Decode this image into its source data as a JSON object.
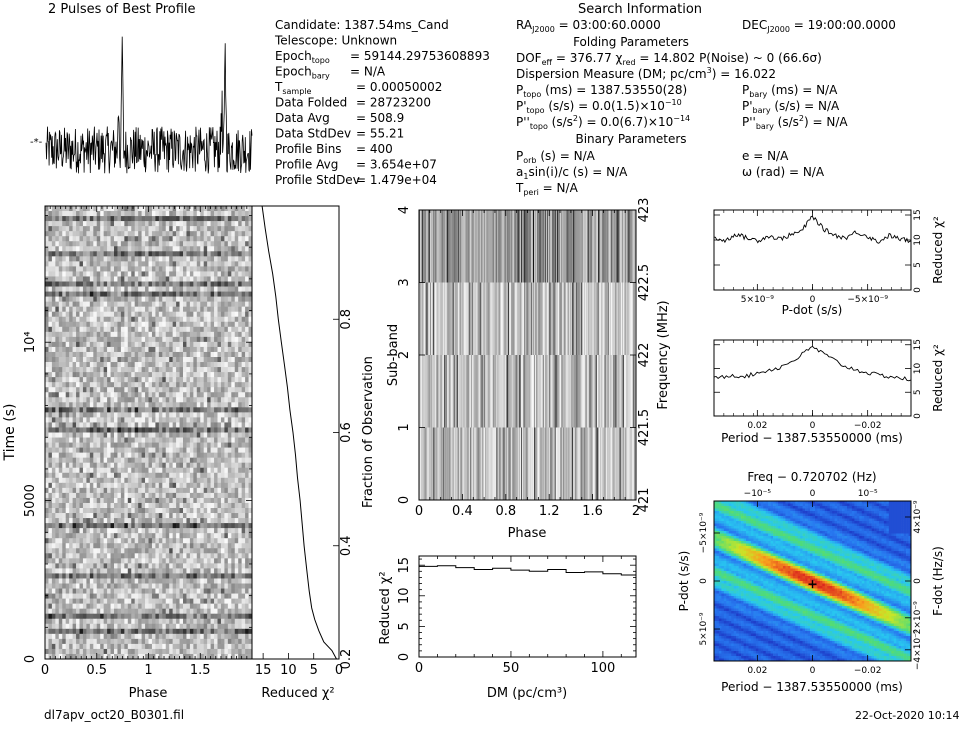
{
  "header": {
    "pulses_title": "2 Pulses of Best Profile",
    "search_title": "Search Information",
    "left_params": [
      {
        "label": "Candidate:  1387.54ms_Cand",
        "value": ""
      },
      {
        "label": "Telescope:  Unknown",
        "value": ""
      },
      {
        "label": "Epoch",
        "sub": "topo",
        "value": "= 59144.29753608893"
      },
      {
        "label": "Epoch",
        "sub": "bary",
        "value": "= N/A"
      },
      {
        "label": "T",
        "sub": "sample",
        "value": "=  0.00050002"
      },
      {
        "label": "Data Folded",
        "value": "=  28723200"
      },
      {
        "label": "Data Avg",
        "value": "=  508.9"
      },
      {
        "label": "Data StdDev",
        "value": "=  55.21"
      },
      {
        "label": "Profile Bins",
        "value": "=  400"
      },
      {
        "label": "Profile Avg",
        "value": "=  3.654e+07"
      },
      {
        "label": "Profile StdDev",
        "value": "=  1.479e+04"
      }
    ],
    "ra": "RA",
    "ra_sub": "J2000",
    "ra_value": "= 03:00:60.0000",
    "dec": "DEC",
    "dec_sub": "J2000",
    "dec_value": "= 19:00:00.0000",
    "folding_title": "Folding Parameters",
    "dof_line": "DOF",
    "dof_sub": "eff",
    "dof_value": "= 376.77   χ",
    "chi_sub": "red",
    "chi_value": "= 14.802   P(Noise) ~ 0     (66.6σ)",
    "dm_line": "Dispersion Measure (DM; pc/cm",
    "dm_value": ") = 16.022",
    "p_topo_label": "P",
    "p_topo_sub": "topo",
    "p_topo_value": "(ms)  =  1387.53550(28)",
    "p_bary_label": "P",
    "p_bary_sub": "bary",
    "p_bary_value": "(ms) = N/A",
    "pd_topo_label": "P'",
    "pd_topo_sub": "topo",
    "pd_topo_value": "(s/s) = 0.0(1.5)×10",
    "pd_topo_exp": "−10",
    "pd_bary_label": "P'",
    "pd_bary_sub": "bary",
    "pd_bary_value": "(s/s) = N/A",
    "pdd_topo_label": "P''",
    "pdd_topo_sub": "topo",
    "pdd_topo_value": "(s/s",
    "pdd_topo_value2": ") = 0.0(6.7)×10",
    "pdd_topo_exp": "−14",
    "pdd_bary_label": "P''",
    "pdd_bary_sub": "bary",
    "pdd_bary_value": "(s/s",
    "pdd_bary_value2": ") = N/A",
    "binary_title": "Binary Parameters",
    "porb_label": "P",
    "porb_sub": "orb",
    "porb_value": "(s) = N/A",
    "e_value": "e = N/A",
    "a1_label": "a",
    "a1_sub": "1",
    "a1_value": "sin(i)/c (s) = N/A",
    "omega_value": "ω (rad) = N/A",
    "tperi_label": "T",
    "tperi_sub": "peri",
    "tperi_value": "= N/A"
  },
  "footer": {
    "filename": "dl7apv_oct20_B0301.fil",
    "date": "22-Oct-2020 10:14"
  },
  "chart_data": [
    {
      "type": "line",
      "id": "profile",
      "title": "2 Pulses of Best Profile",
      "x": [
        0,
        0.1,
        0.2,
        0.3,
        0.4,
        0.5,
        0.6,
        0.7,
        0.74,
        0.76,
        0.8,
        0.9,
        1.0,
        1.1,
        1.2,
        1.3,
        1.4,
        1.5,
        1.6,
        1.7,
        1.74,
        1.76,
        1.8,
        1.9,
        2.0
      ],
      "y": [
        0.0,
        0.1,
        -0.1,
        0.15,
        -0.05,
        0.1,
        -0.1,
        0.05,
        0.95,
        0.05,
        0.1,
        -0.1,
        0.0,
        0.1,
        -0.1,
        0.15,
        -0.05,
        0.1,
        -0.1,
        0.05,
        0.95,
        0.05,
        0.1,
        -0.1,
        0.0
      ]
    },
    {
      "type": "heatmap",
      "id": "time-phase",
      "xlabel": "Phase",
      "ylabel": "Time (s)",
      "xticks": [
        "0",
        "0.5",
        "1",
        "1.5"
      ],
      "yticks": [
        "0",
        "5000",
        "10⁴"
      ],
      "xlim": [
        0,
        2
      ],
      "ylim": [
        0,
        14300
      ]
    },
    {
      "type": "line",
      "id": "reduced-chi2-time",
      "xlabel": "Reduced χ²",
      "ylabel": "Fraction of Observation",
      "xticks": [
        "15",
        "10",
        "5",
        "0"
      ],
      "yticks": [
        "0.2",
        "0.4",
        "0.6",
        "0.8"
      ],
      "chi2": [
        15.2,
        14.6,
        13.9,
        13.1,
        12.5,
        12.0,
        11.4,
        10.8,
        10.2,
        9.7,
        9.1,
        8.6,
        8.2,
        7.7,
        7.3,
        6.9,
        6.4,
        5.9,
        5.4,
        4.8,
        4.0,
        3.0,
        1.4,
        0.5
      ],
      "fraction": [
        1.0,
        0.96,
        0.92,
        0.88,
        0.84,
        0.8,
        0.76,
        0.72,
        0.68,
        0.64,
        0.6,
        0.56,
        0.52,
        0.48,
        0.44,
        0.4,
        0.36,
        0.32,
        0.29,
        0.27,
        0.25,
        0.23,
        0.215,
        0.2
      ]
    },
    {
      "type": "heatmap",
      "id": "subband-phase",
      "xlabel": "Phase",
      "ylabel": "Sub-band",
      "y2label": "Frequency (MHz)",
      "xticks": [
        "0",
        "0.4",
        "0.8",
        "1.2",
        "1.6",
        "2"
      ],
      "yticks": [
        "0",
        "1",
        "2",
        "3",
        "4"
      ],
      "y2ticks": [
        "421",
        "421.5",
        "422",
        "422.5",
        "423"
      ]
    },
    {
      "type": "line",
      "id": "dm-chi2",
      "xlabel": "DM (pc/cm³)",
      "ylabel": "Reduced χ²",
      "xticks": [
        "0",
        "50",
        "100"
      ],
      "yticks": [
        "0",
        "5",
        "10",
        "15"
      ],
      "x": [
        0,
        10,
        20,
        30,
        40,
        50,
        60,
        70,
        80,
        90,
        100,
        110,
        118
      ],
      "y": [
        14.8,
        14.9,
        14.6,
        14.3,
        14.5,
        14.2,
        14.0,
        14.3,
        13.8,
        13.9,
        13.6,
        13.4,
        13.0
      ]
    },
    {
      "type": "line",
      "id": "pdot-chi2",
      "xlabel": "P-dot (s/s)",
      "ylabel": "Reduced χ²",
      "xticks": [
        "5×10⁻⁹",
        "0",
        "−5×10⁻⁹"
      ],
      "yticks": [
        "0",
        "5",
        "10",
        "15"
      ],
      "x": [
        -9,
        -8,
        -7,
        -6,
        -5,
        -4,
        -3,
        -2,
        -1,
        0,
        1,
        2,
        3,
        4,
        5,
        6,
        7,
        8,
        9
      ],
      "y": [
        10.5,
        9.8,
        11.2,
        10.4,
        9.9,
        10.8,
        10.2,
        11.0,
        11.8,
        14.8,
        12.2,
        11.0,
        10.4,
        11.6,
        10.8,
        9.6,
        10.9,
        10.2,
        9.8
      ]
    },
    {
      "type": "line",
      "id": "period-chi2",
      "xlabel": "Period − 1387.53550000 (ms)",
      "ylabel": "Reduced χ²",
      "xticks": [
        "0.02",
        "0",
        "−0.02"
      ],
      "yticks": [
        "0",
        "5",
        "10",
        "15"
      ],
      "x": [
        0.03,
        0.025,
        0.02,
        0.015,
        0.01,
        0.005,
        0.0,
        -0.005,
        -0.01,
        -0.015,
        -0.02,
        -0.025,
        -0.03
      ],
      "y": [
        7.8,
        8.6,
        8.4,
        9.4,
        10.2,
        12.0,
        14.6,
        12.4,
        10.4,
        9.4,
        8.6,
        8.2,
        7.6
      ]
    },
    {
      "type": "heatmap",
      "id": "pdot-period",
      "title": "Freq − 0.720702 (Hz)",
      "xlabel": "Period − 1387.53550000 (ms)",
      "ylabel": "P-dot (s/s)",
      "y2label": "F-dot (Hz/s)",
      "xticks": [
        "0.02",
        "0",
        "−0.02"
      ],
      "yticks": [
        "5×10⁻⁹",
        "0",
        "−5×10⁻⁹"
      ],
      "x2ticks": [
        "−10⁻⁵",
        "0",
        "10⁻⁵"
      ],
      "y2ticks": [
        "−4×10⁻⁹",
        "0",
        "2×10⁻⁹",
        "4×10⁻⁹"
      ]
    }
  ]
}
